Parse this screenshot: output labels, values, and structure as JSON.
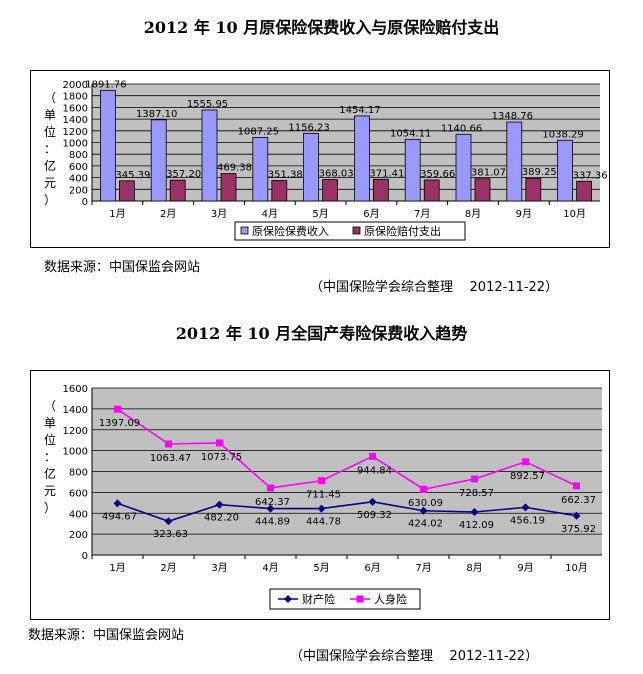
{
  "chart_data": [
    {
      "type": "bar",
      "title": "2012 年 10 月原保险保费收入与原保险赔付支出",
      "ylabel": "（单位：亿元）",
      "ylabel_chars": [
        "（",
        "单",
        "位",
        "：",
        "亿",
        "元",
        "）"
      ],
      "categories": [
        "1月",
        "2月",
        "3月",
        "4月",
        "5月",
        "6月",
        "7月",
        "8月",
        "9月",
        "10月"
      ],
      "ylim": [
        0,
        2000
      ],
      "yticks": [
        0,
        200,
        400,
        600,
        800,
        1000,
        1200,
        1400,
        1600,
        1800,
        2000
      ],
      "grid": true,
      "legend": "bottom",
      "series": [
        {
          "name": "原保险保费收入",
          "color": "#9999ff",
          "values": [
            1891.76,
            1387.1,
            1555.95,
            1087.25,
            1156.23,
            1454.17,
            1054.11,
            1140.66,
            1348.76,
            1038.29
          ],
          "labels": [
            "1891.76",
            "1387.10",
            "1555.95",
            "1087.25",
            "1156.23",
            "1454.17",
            "1054.11",
            "1140.66",
            "1348.76",
            "1038.29"
          ]
        },
        {
          "name": "原保险赔付支出",
          "color": "#993366",
          "values": [
            345.39,
            357.2,
            469.38,
            351.38,
            368.03,
            371.41,
            359.66,
            381.07,
            389.25,
            337.36
          ],
          "labels": [
            "345.39",
            "357.20",
            "469.38",
            "351.38",
            "368.03",
            "371.41",
            "359.66",
            "381.07",
            "389.25",
            "337.36"
          ]
        }
      ]
    },
    {
      "type": "line",
      "title": "2012 年 10 月全国产寿险保费收入趋势",
      "ylabel": "（单位：亿元）",
      "ylabel_chars": [
        "（",
        "单",
        "位",
        "：",
        "亿",
        "元",
        "）"
      ],
      "categories": [
        "1月",
        "2月",
        "3月",
        "4月",
        "5月",
        "6月",
        "7月",
        "8月",
        "9月",
        "10月"
      ],
      "ylim": [
        0,
        1600
      ],
      "yticks": [
        0,
        200,
        400,
        600,
        800,
        1000,
        1200,
        1400,
        1600
      ],
      "grid": true,
      "legend": "bottom",
      "series": [
        {
          "name": "财产险",
          "color": "#000080",
          "marker": "diamond",
          "values": [
            494.67,
            323.63,
            482.2,
            444.89,
            444.78,
            509.32,
            424.02,
            412.09,
            456.19,
            375.92
          ],
          "labels": [
            "494.67",
            "323.63",
            "482.20",
            "444.89",
            "444.78",
            "509.32",
            "424.02",
            "412.09",
            "456.19",
            "375.92"
          ]
        },
        {
          "name": "人身险",
          "color": "#ff00ff",
          "marker": "square",
          "values": [
            1397.09,
            1063.47,
            1073.75,
            642.37,
            711.45,
            944.84,
            630.09,
            728.57,
            892.57,
            662.37
          ],
          "labels": [
            "1397.09",
            "1063.47",
            "1073.75",
            "642.37",
            "711.45",
            "944.84",
            "630.09",
            "728.57",
            "892.57",
            "662.37"
          ]
        }
      ]
    }
  ],
  "notes": {
    "source1": "数据来源：中国保监会网站",
    "credit1": "（中国保险学会综合整理    2012-11-22）",
    "source2": "数据来源：中国保监会网站",
    "credit2": "（中国保险学会综合整理    2012-11-22）"
  }
}
